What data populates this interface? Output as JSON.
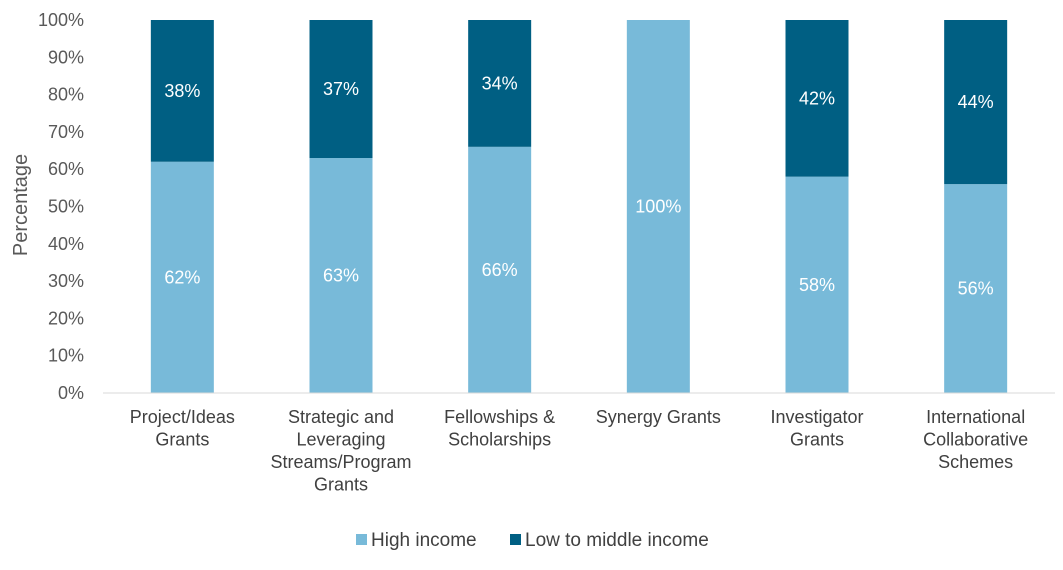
{
  "chart_data": {
    "type": "bar",
    "stacked": true,
    "ylabel": "Percentage",
    "ylim": [
      0,
      100
    ],
    "yticks": [
      "0%",
      "10%",
      "20%",
      "30%",
      "40%",
      "50%",
      "60%",
      "70%",
      "80%",
      "90%",
      "100%"
    ],
    "categories": [
      [
        "Project/Ideas",
        "Grants"
      ],
      [
        "Strategic and",
        "Leveraging",
        "Streams/Program",
        "Grants"
      ],
      [
        "Fellowships &",
        "Scholarships"
      ],
      [
        "Synergy Grants"
      ],
      [
        "Investigator",
        "Grants"
      ],
      [
        "International",
        "Collaborative",
        "Schemes"
      ]
    ],
    "series": [
      {
        "name": "High income",
        "color": "#78BAD9",
        "values": [
          62,
          63,
          66,
          100,
          58,
          56
        ],
        "labels": [
          "62%",
          "63%",
          "66%",
          "100%",
          "58%",
          "56%"
        ]
      },
      {
        "name": "Low to middle income",
        "color": "#005F83",
        "values": [
          38,
          37,
          34,
          0,
          42,
          44
        ],
        "labels": [
          "38%",
          "37%",
          "34%",
          "",
          "42%",
          "44%"
        ]
      }
    ],
    "grid": false,
    "legend": "bottom"
  }
}
